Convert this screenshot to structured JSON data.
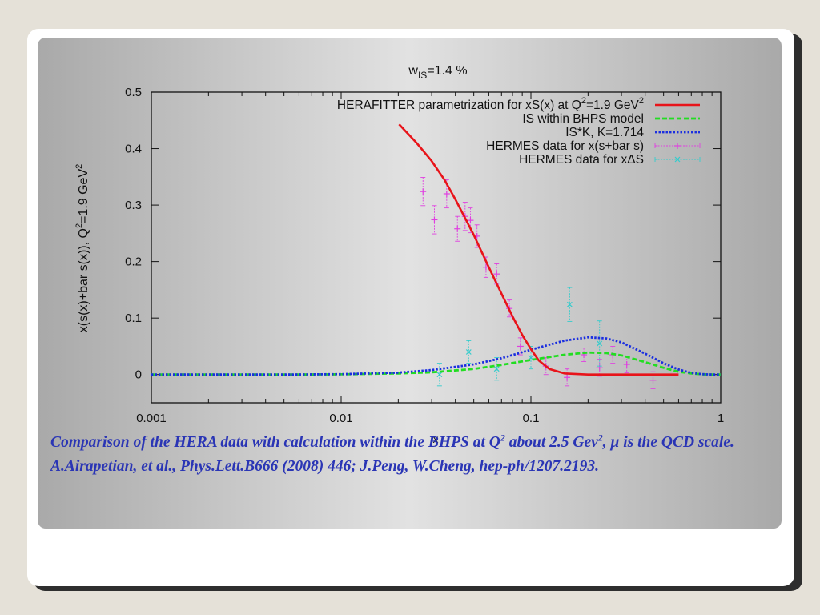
{
  "chart_data": {
    "type": "line",
    "title_main": "w",
    "title_sub": "IS",
    "title_rest": "=1.4 %",
    "xlabel": "",
    "xscale": "log",
    "xlim": [
      0.001,
      1
    ],
    "ylim": [
      -0.05,
      0.5
    ],
    "xticks": [
      0.001,
      0.01,
      0.1,
      1
    ],
    "xtick_labels": [
      "0.001",
      "0.01",
      "0.1",
      "1"
    ],
    "yticks": [
      0,
      0.1,
      0.2,
      0.3,
      0.4,
      0.5
    ],
    "ytick_labels": [
      "0",
      "0.1",
      "0.2",
      "0.3",
      "0.4",
      "0.5"
    ],
    "ylabel_parts": [
      "x(s(x)+bar s(x)), Q",
      "2",
      "=1.9 GeV",
      "2"
    ],
    "legend_position": "top-right",
    "series": [
      {
        "name": "HERAFITTER parametrization for xS(x) at Q2=1.9 GeV2",
        "legend_parts": [
          "HERAFITTER parametrization for xS(x) at Q",
          "2",
          "=1.9 GeV",
          "2"
        ],
        "style": "solid",
        "color": "#e8141a",
        "x": [
          0.0202,
          0.025,
          0.03,
          0.035,
          0.04,
          0.045,
          0.05,
          0.06,
          0.07,
          0.08,
          0.09,
          0.1,
          0.11,
          0.125,
          0.15,
          0.2,
          0.3,
          0.6
        ],
        "y": [
          0.443,
          0.41,
          0.378,
          0.345,
          0.31,
          0.277,
          0.247,
          0.19,
          0.143,
          0.103,
          0.07,
          0.045,
          0.025,
          0.01,
          0.002,
          0.0,
          0.0,
          0.0
        ]
      },
      {
        "name": "IS within BHPS model",
        "style": "dashed",
        "color": "#22dd22",
        "x": [
          0.001,
          0.005,
          0.01,
          0.02,
          0.03,
          0.05,
          0.07,
          0.1,
          0.15,
          0.2,
          0.25,
          0.3,
          0.4,
          0.5,
          0.6,
          0.7,
          0.8,
          0.9,
          1.0
        ],
        "y": [
          0.0,
          0.0,
          0.0004,
          0.002,
          0.004,
          0.01,
          0.017,
          0.026,
          0.035,
          0.039,
          0.038,
          0.034,
          0.022,
          0.012,
          0.005,
          0.002,
          0.0005,
          0.0,
          0.0
        ]
      },
      {
        "name": "IS*K, K=1.714",
        "style": "dotted",
        "color": "#1a2ee0",
        "x": [
          0.001,
          0.005,
          0.01,
          0.02,
          0.03,
          0.05,
          0.07,
          0.1,
          0.15,
          0.2,
          0.25,
          0.3,
          0.4,
          0.5,
          0.6,
          0.7,
          0.8,
          0.9,
          1.0
        ],
        "y": [
          0.0,
          0.0,
          0.0007,
          0.0035,
          0.008,
          0.018,
          0.029,
          0.044,
          0.06,
          0.066,
          0.064,
          0.057,
          0.037,
          0.02,
          0.009,
          0.003,
          0.0008,
          0.0,
          0.0
        ]
      },
      {
        "name": "HERMES data for x(s+bar s)",
        "style": "points",
        "color": "#e040e0",
        "x": [
          0.027,
          0.031,
          0.036,
          0.041,
          0.045,
          0.048,
          0.052,
          0.058,
          0.066,
          0.077,
          0.088,
          0.12,
          0.155,
          0.19,
          0.23,
          0.27,
          0.32,
          0.44
        ],
        "y": [
          0.324,
          0.274,
          0.32,
          0.258,
          0.28,
          0.273,
          0.245,
          0.19,
          0.178,
          0.117,
          0.05,
          0.015,
          -0.005,
          0.035,
          0.012,
          0.035,
          0.018,
          -0.01
        ],
        "err": [
          0.025,
          0.025,
          0.025,
          0.022,
          0.025,
          0.022,
          0.02,
          0.018,
          0.018,
          0.015,
          0.015,
          0.015,
          0.015,
          0.012,
          0.015,
          0.015,
          0.015,
          0.015
        ]
      },
      {
        "name": "HERMES data for xΔS",
        "style": "points",
        "color": "#33cccc",
        "x": [
          0.033,
          0.047,
          0.066,
          0.1,
          0.16,
          0.23
        ],
        "y": [
          0.0,
          0.04,
          0.01,
          0.03,
          0.124,
          0.055
        ],
        "err": [
          0.02,
          0.02,
          0.02,
          0.02,
          0.03,
          0.04
        ]
      }
    ]
  },
  "caption": {
    "part1": "Comparison of the HERA data with  calculation within the BHPS at Q",
    "sup1": "2",
    "part2": " about 2.5 Gev",
    "sup2": "2",
    "part3": ", μ is the QCD scale. A.Airapetian, et al., Phys.Lett.B666 (2008) 446; J.Peng, W.Cheng, hep-ph/1207.2193."
  },
  "x_marker_text": "x"
}
